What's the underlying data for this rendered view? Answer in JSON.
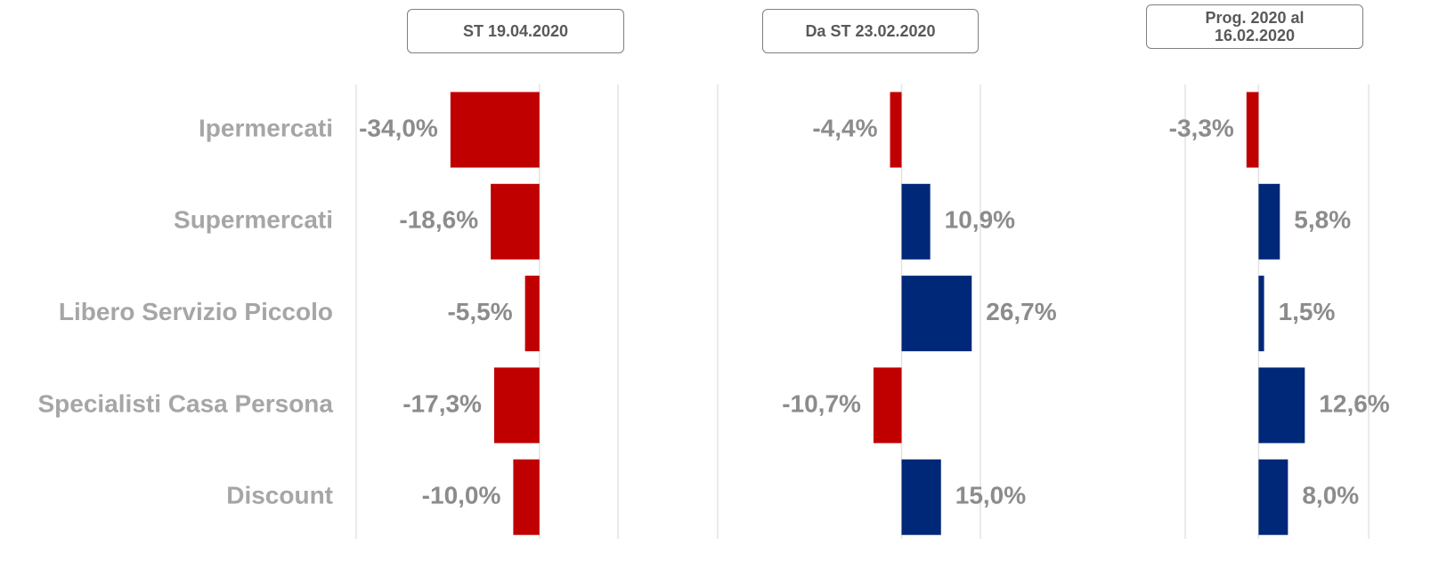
{
  "chart_data": [
    {
      "type": "bar",
      "orientation": "horizontal",
      "title": "ST 19.04.2020",
      "categories": [
        "Ipermercati",
        "Supermercati",
        "Libero Servizio Piccolo",
        "Specialisti Casa Persona",
        "Discount"
      ],
      "values": [
        -34.0,
        -18.6,
        -5.5,
        -17.3,
        -10.0
      ],
      "value_labels": [
        "-34,0%",
        "-18,6%",
        "-5,5%",
        "-17,3%",
        "-10,0%"
      ],
      "colors": [
        "#c00000",
        "#c00000",
        "#c00000",
        "#c00000",
        "#c00000"
      ],
      "xlim": [
        -70,
        30
      ],
      "xticks": [
        -70,
        0,
        30
      ],
      "grid": true
    },
    {
      "type": "bar",
      "orientation": "horizontal",
      "title": "Da ST 23.02.2020",
      "values": [
        -4.4,
        10.9,
        26.7,
        -10.7,
        15.0
      ],
      "value_labels": [
        "-4,4%",
        "10,9%",
        "26,7%",
        "-10,7%",
        "15,0%"
      ],
      "colors": [
        "#c00000",
        "#002878",
        "#002878",
        "#c00000",
        "#002878"
      ],
      "xlim": [
        -70,
        30
      ],
      "xticks": [
        -70,
        0,
        30
      ],
      "grid": true
    },
    {
      "type": "bar",
      "orientation": "horizontal",
      "title": "Prog. 2020 al 16.02.2020",
      "values": [
        -3.3,
        5.8,
        1.5,
        12.6,
        8.0
      ],
      "value_labels": [
        "-3,3%",
        "5,8%",
        "1,5%",
        "12,6%",
        "8,0%"
      ],
      "colors": [
        "#c00000",
        "#002878",
        "#002878",
        "#002878",
        "#002878"
      ],
      "xlim": [
        -20,
        30
      ],
      "xticks": [
        -20,
        0,
        30
      ],
      "grid": true
    }
  ]
}
